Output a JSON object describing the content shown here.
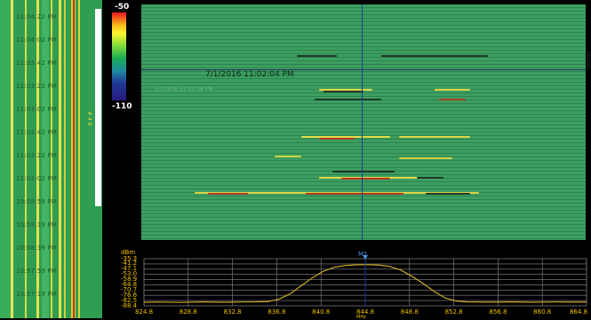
{
  "time_labels": [
    "11:04:22 PM",
    "11:04:02 PM",
    "11:03:42 PM",
    "11:03:22 PM",
    "11:03:02 PM",
    "11:02:42 PM",
    "11:02:22 PM",
    "11:02:02 PM",
    "10:59:59 PM",
    "10:59:19 PM",
    "10:58:39 PM",
    "10:57:59 PM",
    "10:57:19 PM"
  ],
  "side_marker": "# 4 B",
  "color_scale": {
    "max": "-50",
    "min": "-110"
  },
  "waterfall": {
    "timestamp": "7/1/2016 11:02:04 PM",
    "faint_timestamp": "7/1/2016 11:02:04 PM"
  },
  "spectrum": {
    "unit": "dBm",
    "marker": "M1",
    "x_unit": "MHz",
    "y_ticks": [
      "-35.3",
      "-41.2",
      "-47.1",
      "-53.0",
      "-58.9",
      "-64.8",
      "-70.7",
      "-76.6",
      "-82.5",
      "-88.4"
    ],
    "x_ticks": [
      "824.8",
      "828.8",
      "832.8",
      "836.8",
      "840.8",
      "844.8",
      "848.8",
      "852.8",
      "856.8",
      "860.8",
      "864.8"
    ],
    "marker_freq": 844.8,
    "trace": [
      [
        824.8,
        -84.5
      ],
      [
        826.0,
        -84.2
      ],
      [
        828.0,
        -84.6
      ],
      [
        830.0,
        -84.0
      ],
      [
        832.0,
        -84.4
      ],
      [
        834.0,
        -84.1
      ],
      [
        836.0,
        -83.8
      ],
      [
        837.0,
        -81.0
      ],
      [
        838.0,
        -75.0
      ],
      [
        839.0,
        -66.0
      ],
      [
        840.0,
        -57.0
      ],
      [
        841.0,
        -49.5
      ],
      [
        842.0,
        -45.0
      ],
      [
        843.0,
        -43.0
      ],
      [
        844.0,
        -42.2
      ],
      [
        844.8,
        -42.0
      ],
      [
        846.0,
        -42.4
      ],
      [
        847.0,
        -44.0
      ],
      [
        848.0,
        -48.0
      ],
      [
        849.0,
        -55.0
      ],
      [
        850.0,
        -63.0
      ],
      [
        851.0,
        -72.0
      ],
      [
        852.0,
        -79.5
      ],
      [
        853.0,
        -83.0
      ],
      [
        854.0,
        -84.0
      ],
      [
        856.0,
        -84.3
      ],
      [
        858.0,
        -84.0
      ],
      [
        860.0,
        -84.4
      ],
      [
        862.0,
        -84.1
      ],
      [
        864.8,
        -84.3
      ]
    ]
  },
  "colors": {
    "trace": "#c8a827",
    "axis_text": "#f0c000",
    "marker": "#1a3d9c"
  }
}
